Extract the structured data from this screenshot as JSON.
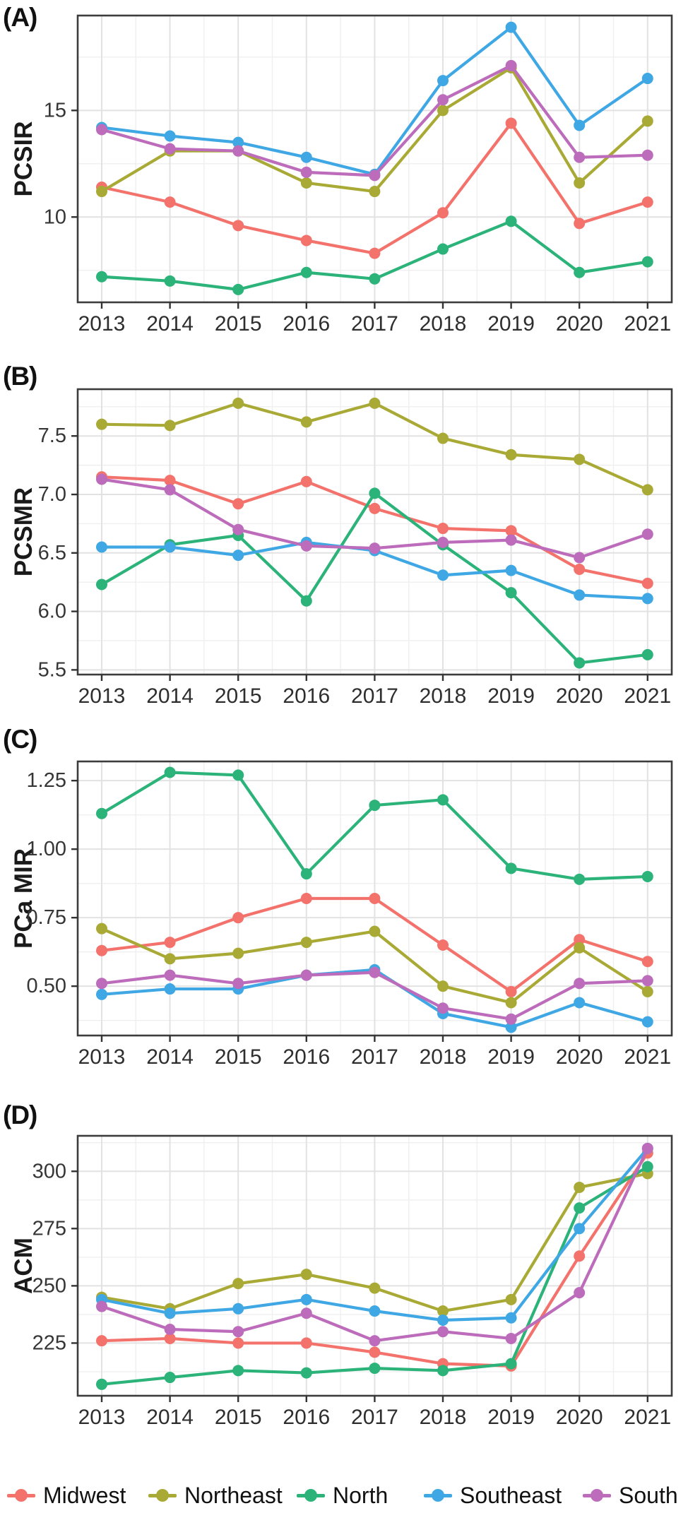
{
  "legend": {
    "items": [
      {
        "label": "Midwest",
        "color": "#F3726B"
      },
      {
        "label": "Northeast",
        "color": "#A9AA35"
      },
      {
        "label": "North",
        "color": "#2BB379"
      },
      {
        "label": "Southeast",
        "color": "#3FA8E4"
      },
      {
        "label": "South",
        "color": "#BC6CBA"
      }
    ]
  },
  "chart_data": [
    {
      "type": "line",
      "panel_label": "(A)",
      "ylabel": "PCSIR",
      "xlabel": "",
      "x_tick_labels": [
        "2013",
        "2014",
        "2015",
        "2016",
        "2017",
        "2018",
        "2019",
        "2020",
        "2021"
      ],
      "ylim": [
        6.0,
        19.45
      ],
      "yticks": [
        {
          "value": 10,
          "label": "10"
        },
        {
          "value": 15,
          "label": "15"
        }
      ],
      "yticks_minor": [
        7.5,
        12.5,
        17.5
      ],
      "grid": true,
      "legend_position": "bottom-shared",
      "series": [
        {
          "name": "Midwest",
          "color": "#F3726B",
          "values": [
            11.4,
            10.7,
            9.6,
            8.9,
            8.3,
            10.2,
            14.4,
            9.7,
            10.7
          ]
        },
        {
          "name": "Northeast",
          "color": "#A9AA35",
          "values": [
            11.2,
            13.1,
            13.1,
            11.6,
            11.2,
            15.0,
            17.0,
            11.6,
            14.5
          ]
        },
        {
          "name": "North",
          "color": "#2BB379",
          "values": [
            7.2,
            7.0,
            6.6,
            7.4,
            7.1,
            8.5,
            9.8,
            7.4,
            7.9
          ]
        },
        {
          "name": "Southeast",
          "color": "#3FA8E4",
          "values": [
            14.2,
            13.8,
            13.5,
            12.8,
            12.0,
            16.4,
            18.9,
            14.3,
            16.5
          ]
        },
        {
          "name": "South",
          "color": "#BC6CBA",
          "values": [
            14.1,
            13.2,
            13.1,
            12.1,
            11.95,
            15.5,
            17.1,
            12.8,
            12.9
          ]
        }
      ]
    },
    {
      "type": "line",
      "panel_label": "(B)",
      "ylabel": "PCSMR",
      "xlabel": "",
      "x_tick_labels": [
        "2013",
        "2014",
        "2015",
        "2016",
        "2017",
        "2018",
        "2019",
        "2020",
        "2021"
      ],
      "ylim": [
        5.46,
        7.9
      ],
      "yticks": [
        {
          "value": 5.5,
          "label": "5.5"
        },
        {
          "value": 6.0,
          "label": "6.0"
        },
        {
          "value": 6.5,
          "label": "6.5"
        },
        {
          "value": 7.0,
          "label": "7.0"
        },
        {
          "value": 7.5,
          "label": "7.5"
        }
      ],
      "yticks_minor": [
        5.75,
        6.25,
        6.75,
        7.25,
        7.75
      ],
      "grid": true,
      "legend_position": "bottom-shared",
      "series": [
        {
          "name": "Midwest",
          "color": "#F3726B",
          "values": [
            7.15,
            7.12,
            6.92,
            7.11,
            6.88,
            6.71,
            6.69,
            6.36,
            6.24
          ]
        },
        {
          "name": "Northeast",
          "color": "#A9AA35",
          "values": [
            7.6,
            7.59,
            7.78,
            7.62,
            7.78,
            7.48,
            7.34,
            7.3,
            7.04
          ]
        },
        {
          "name": "North",
          "color": "#2BB379",
          "values": [
            6.23,
            6.57,
            6.65,
            6.09,
            7.01,
            6.57,
            6.16,
            5.56,
            5.63
          ]
        },
        {
          "name": "Southeast",
          "color": "#3FA8E4",
          "values": [
            6.55,
            6.55,
            6.48,
            6.59,
            6.52,
            6.31,
            6.35,
            6.14,
            6.11
          ]
        },
        {
          "name": "South",
          "color": "#BC6CBA",
          "values": [
            7.13,
            7.04,
            6.7,
            6.56,
            6.54,
            6.59,
            6.61,
            6.46,
            6.66
          ]
        }
      ]
    },
    {
      "type": "line",
      "panel_label": "(C)",
      "ylabel": "PCa MIR",
      "xlabel": "",
      "x_tick_labels": [
        "2013",
        "2014",
        "2015",
        "2016",
        "2017",
        "2018",
        "2019",
        "2020",
        "2021"
      ],
      "ylim": [
        0.32,
        1.32
      ],
      "yticks": [
        {
          "value": 0.5,
          "label": "0.50"
        },
        {
          "value": 0.75,
          "label": "0.75"
        },
        {
          "value": 1.0,
          "label": "1.00"
        },
        {
          "value": 1.25,
          "label": "1.25"
        }
      ],
      "yticks_minor": [
        0.375,
        0.625,
        0.875,
        1.125
      ],
      "grid": true,
      "legend_position": "bottom-shared",
      "series": [
        {
          "name": "Midwest",
          "color": "#F3726B",
          "values": [
            0.63,
            0.66,
            0.75,
            0.82,
            0.82,
            0.65,
            0.48,
            0.67,
            0.59
          ]
        },
        {
          "name": "Northeast",
          "color": "#A9AA35",
          "values": [
            0.71,
            0.6,
            0.62,
            0.66,
            0.7,
            0.5,
            0.44,
            0.64,
            0.48
          ]
        },
        {
          "name": "North",
          "color": "#2BB379",
          "values": [
            1.13,
            1.28,
            1.27,
            0.91,
            1.16,
            1.18,
            0.93,
            0.89,
            0.9
          ]
        },
        {
          "name": "Southeast",
          "color": "#3FA8E4",
          "values": [
            0.47,
            0.49,
            0.49,
            0.54,
            0.56,
            0.4,
            0.35,
            0.44,
            0.37
          ]
        },
        {
          "name": "South",
          "color": "#BC6CBA",
          "values": [
            0.51,
            0.54,
            0.51,
            0.54,
            0.55,
            0.42,
            0.38,
            0.51,
            0.52
          ]
        }
      ]
    },
    {
      "type": "line",
      "panel_label": "(D)",
      "ylabel": "ACM",
      "xlabel": "",
      "x_tick_labels": [
        "2013",
        "2014",
        "2015",
        "2016",
        "2017",
        "2018",
        "2019",
        "2020",
        "2021"
      ],
      "ylim": [
        202,
        315.5
      ],
      "yticks": [
        {
          "value": 225,
          "label": "225"
        },
        {
          "value": 250,
          "label": "250"
        },
        {
          "value": 275,
          "label": "275"
        },
        {
          "value": 300,
          "label": "300"
        }
      ],
      "yticks_minor": [
        212.5,
        237.5,
        262.5,
        287.5,
        312.5
      ],
      "grid": true,
      "legend_position": "bottom-shared",
      "series": [
        {
          "name": "Midwest",
          "color": "#F3726B",
          "values": [
            226,
            227,
            225,
            225,
            221,
            216,
            215,
            263,
            308
          ]
        },
        {
          "name": "Northeast",
          "color": "#A9AA35",
          "values": [
            245,
            240,
            251,
            255,
            249,
            239,
            244,
            293,
            299
          ]
        },
        {
          "name": "North",
          "color": "#2BB379",
          "values": [
            207,
            210,
            213,
            212,
            214,
            213,
            216,
            284,
            302
          ]
        },
        {
          "name": "Southeast",
          "color": "#3FA8E4",
          "values": [
            244,
            238,
            240,
            244,
            239,
            235,
            236,
            275,
            310
          ]
        },
        {
          "name": "South",
          "color": "#BC6CBA",
          "values": [
            241,
            231,
            230,
            238,
            226,
            230,
            227,
            247,
            310
          ]
        }
      ]
    }
  ]
}
